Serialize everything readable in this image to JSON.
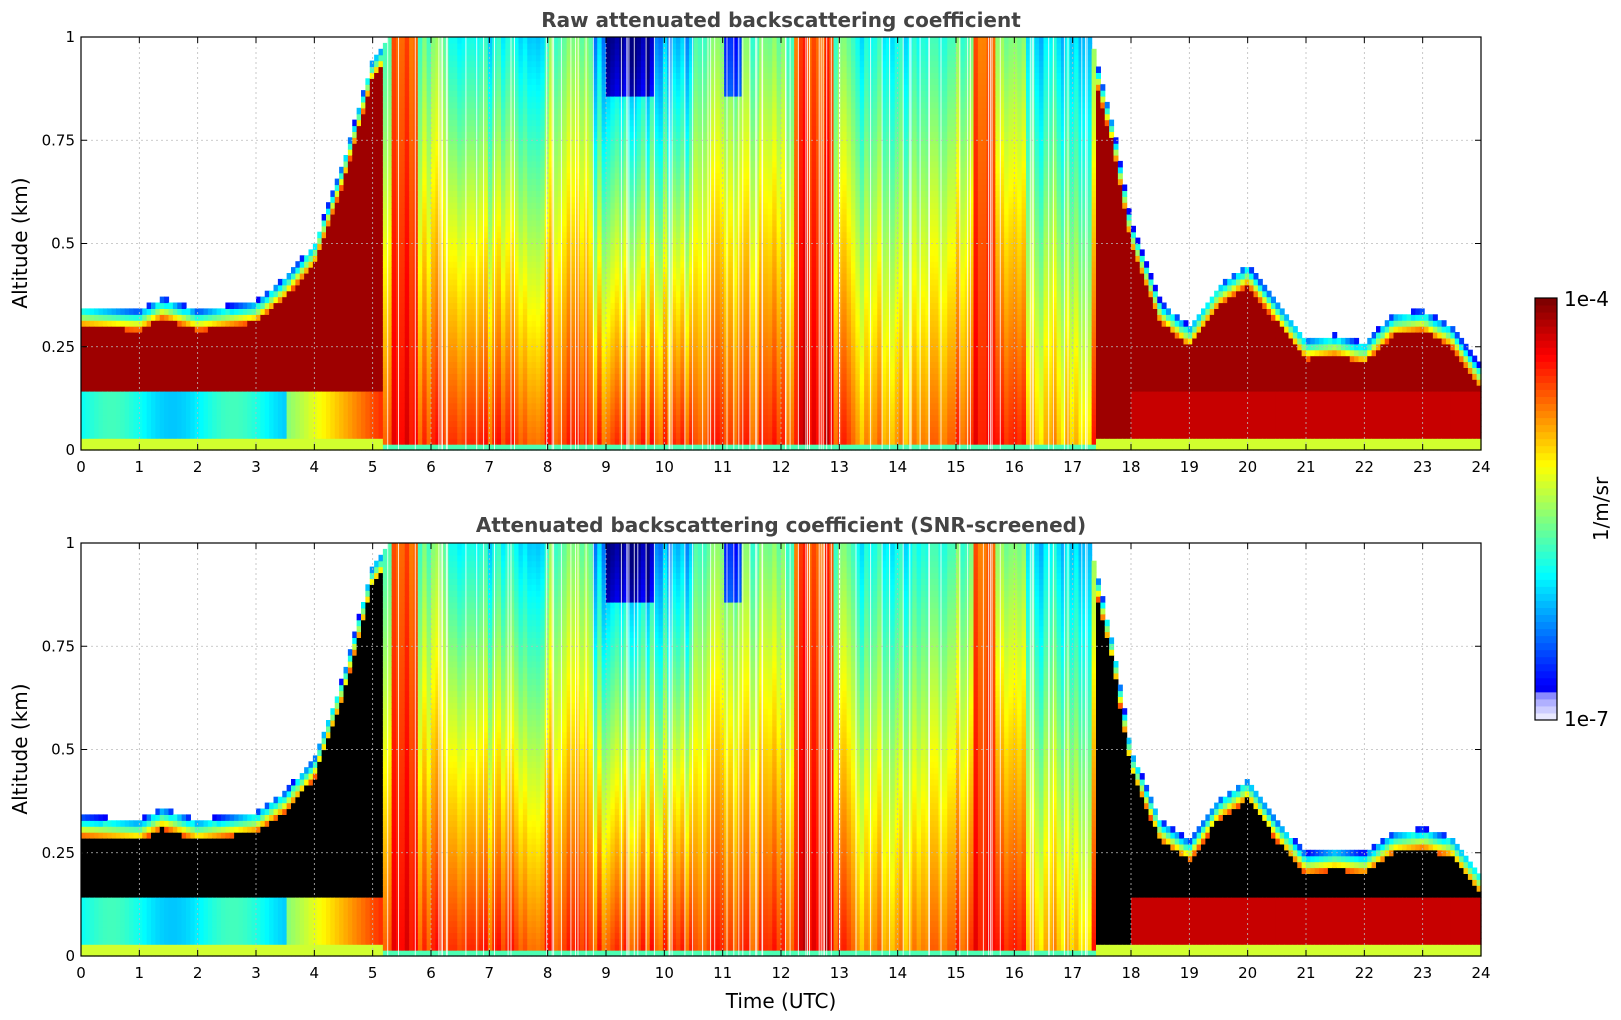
{
  "chart_data": [
    {
      "type": "heatmap",
      "title": "Raw attenuated backscattering coefficient",
      "xlabel": "",
      "ylabel": "Altitude (km)",
      "xlim": [
        0,
        24
      ],
      "ylim": [
        0,
        1
      ],
      "xticks": [
        "0",
        "1",
        "2",
        "3",
        "4",
        "5",
        "6",
        "7",
        "8",
        "9",
        "10",
        "11",
        "12",
        "13",
        "14",
        "15",
        "16",
        "17",
        "18",
        "19",
        "20",
        "21",
        "22",
        "23",
        "24"
      ],
      "yticks": [
        "0",
        "0.25",
        "0.5",
        "0.75",
        "1"
      ],
      "grid": true,
      "screened": false,
      "colormap": "jet",
      "boundary_layer_top_km": [
        [
          0,
          0.35
        ],
        [
          1,
          0.34
        ],
        [
          1.4,
          0.37
        ],
        [
          2,
          0.34
        ],
        [
          3,
          0.36
        ],
        [
          3.5,
          0.42
        ],
        [
          4,
          0.5
        ],
        [
          4.5,
          0.7
        ],
        [
          5,
          0.95
        ],
        [
          5.3,
          1.0
        ],
        [
          17.3,
          1.0
        ],
        [
          17.7,
          0.78
        ],
        [
          18,
          0.55
        ],
        [
          18.5,
          0.36
        ],
        [
          19,
          0.3
        ],
        [
          19.5,
          0.4
        ],
        [
          20,
          0.45
        ],
        [
          20.5,
          0.36
        ],
        [
          21,
          0.27
        ],
        [
          21.5,
          0.28
        ],
        [
          22,
          0.26
        ],
        [
          22.5,
          0.33
        ],
        [
          23,
          0.34
        ],
        [
          23.5,
          0.3
        ],
        [
          24,
          0.2
        ]
      ]
    },
    {
      "type": "heatmap",
      "title": "Attenuated backscattering coefficient (SNR-screened)",
      "xlabel": "Time (UTC)",
      "ylabel": "Altitude (km)",
      "xlim": [
        0,
        24
      ],
      "ylim": [
        0,
        1
      ],
      "xticks": [
        "0",
        "1",
        "2",
        "3",
        "4",
        "5",
        "6",
        "7",
        "8",
        "9",
        "10",
        "11",
        "12",
        "13",
        "14",
        "15",
        "16",
        "17",
        "18",
        "19",
        "20",
        "21",
        "22",
        "23",
        "24"
      ],
      "yticks": [
        "0",
        "0.25",
        "0.5",
        "0.75",
        "1"
      ],
      "grid": true,
      "screened": true,
      "colormap": "jet",
      "boundary_layer_top_km": [
        [
          0,
          0.34
        ],
        [
          1,
          0.33
        ],
        [
          1.4,
          0.36
        ],
        [
          2,
          0.33
        ],
        [
          3,
          0.35
        ],
        [
          3.5,
          0.4
        ],
        [
          4,
          0.48
        ],
        [
          4.5,
          0.68
        ],
        [
          5,
          0.95
        ],
        [
          5.3,
          1.0
        ],
        [
          17.3,
          1.0
        ],
        [
          17.7,
          0.75
        ],
        [
          18,
          0.5
        ],
        [
          18.5,
          0.33
        ],
        [
          19,
          0.28
        ],
        [
          19.5,
          0.38
        ],
        [
          20,
          0.43
        ],
        [
          20.5,
          0.33
        ],
        [
          21,
          0.25
        ],
        [
          21.5,
          0.26
        ],
        [
          22,
          0.25
        ],
        [
          22.5,
          0.3
        ],
        [
          23,
          0.31
        ],
        [
          23.5,
          0.29
        ],
        [
          24,
          0.2
        ]
      ]
    }
  ],
  "colorbar": {
    "label": "1/m/sr",
    "max_label": "1e-4",
    "min_label": "1e-7",
    "scale": "log",
    "range": [
      1e-07,
      0.0001
    ]
  },
  "colors": {
    "jet_dark_red": "#800000",
    "jet_red": "#ff0000",
    "jet_yellow": "#ffff00",
    "jet_cyan": "#00ffff",
    "jet_blue": "#0000ff",
    "grid": "#bbbbbb",
    "screened_saturated": "#000000"
  }
}
